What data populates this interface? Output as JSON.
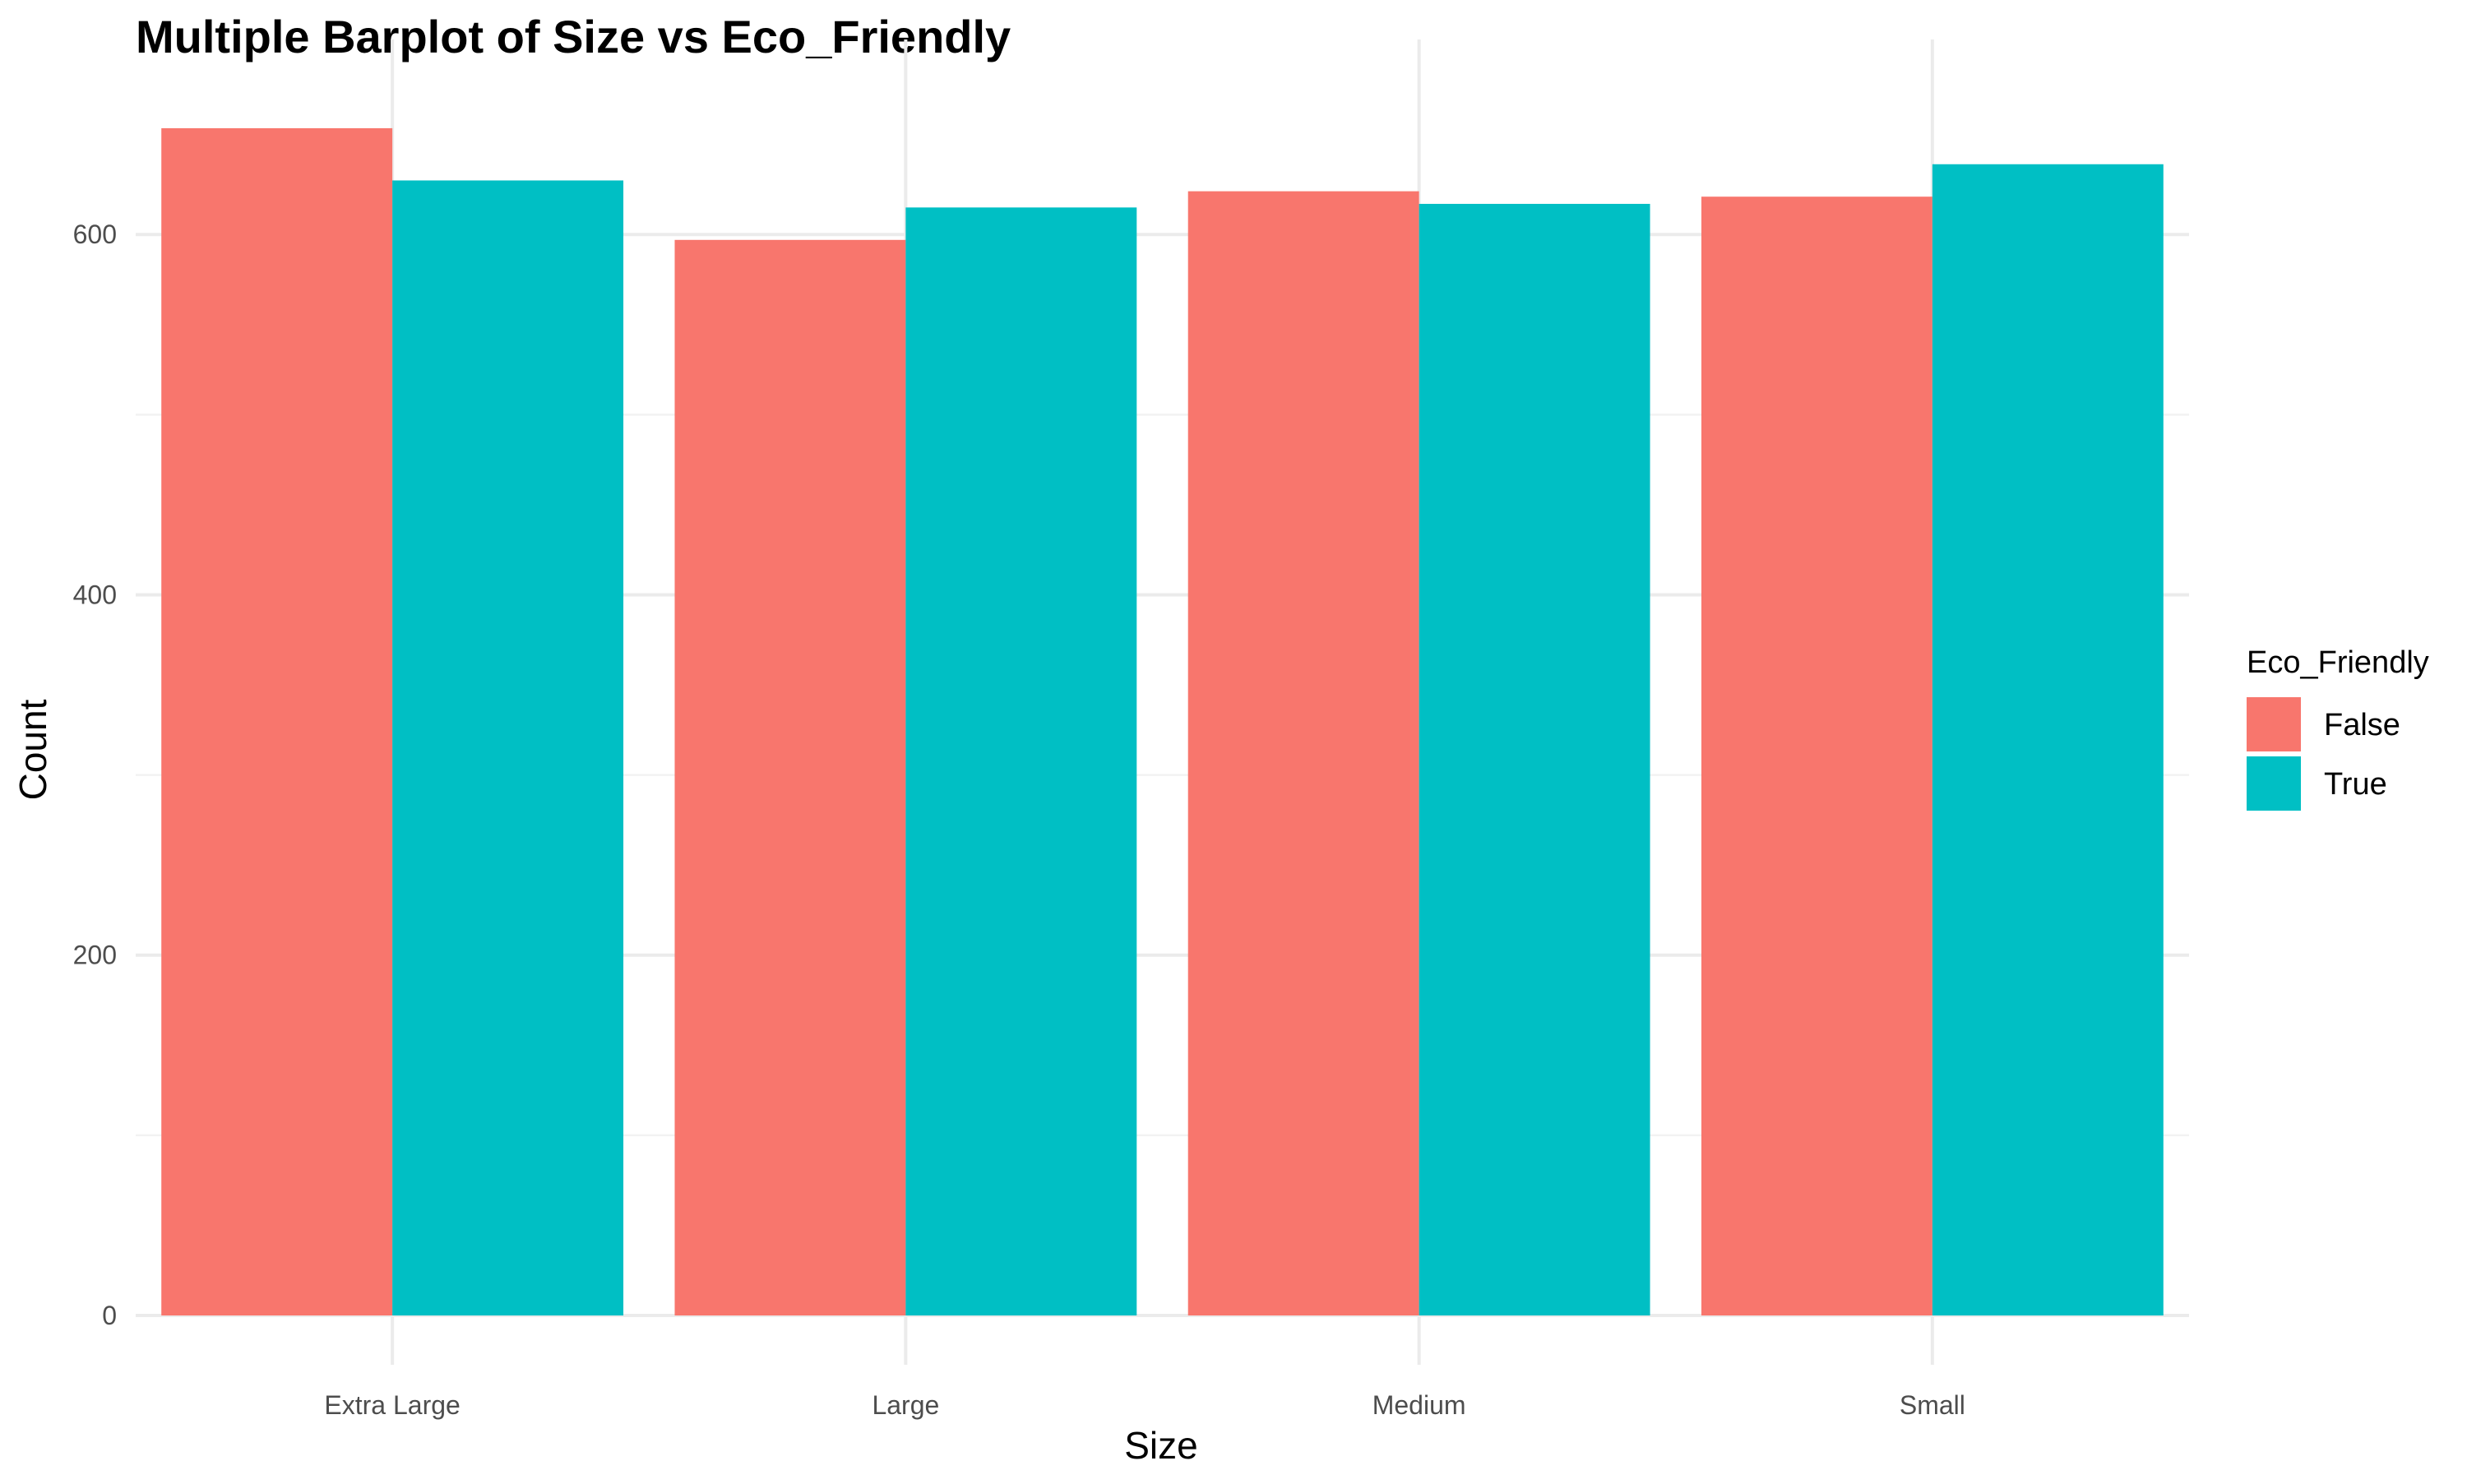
{
  "chart_data": {
    "type": "bar",
    "title": "Multiple Barplot of Size vs Eco_Friendly",
    "xlabel": "Size",
    "ylabel": "Count",
    "categories": [
      "Extra Large",
      "Large",
      "Medium",
      "Small"
    ],
    "series": [
      {
        "name": "False",
        "color": "#F8766D",
        "values": [
          659,
          597,
          624,
          621
        ]
      },
      {
        "name": "True",
        "color": "#00BFC4",
        "values": [
          630,
          615,
          617,
          639
        ]
      }
    ],
    "ylim": [
      0,
      690
    ],
    "yticks": [
      0,
      200,
      400,
      600
    ],
    "grid": true,
    "legend": {
      "title": "Eco_Friendly",
      "position": "right"
    }
  }
}
